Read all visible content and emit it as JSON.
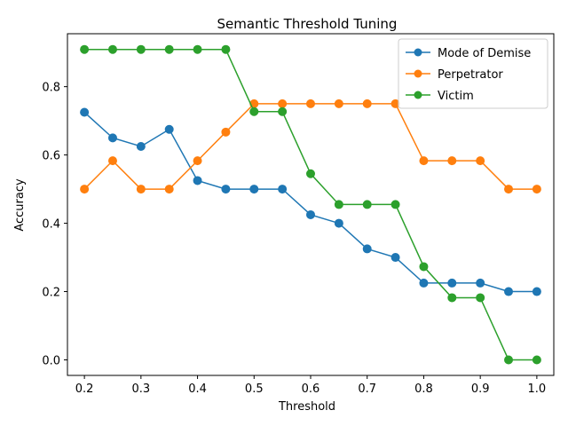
{
  "chart_data": {
    "type": "line",
    "title": "Semantic Threshold Tuning",
    "xlabel": "Threshold",
    "ylabel": "Accuracy",
    "x": [
      0.2,
      0.25,
      0.3,
      0.35,
      0.4,
      0.45,
      0.5,
      0.55,
      0.6,
      0.65,
      0.7,
      0.75,
      0.8,
      0.85,
      0.9,
      0.95,
      1.0
    ],
    "xlim": [
      0.17,
      1.03
    ],
    "ylim": [
      -0.0455,
      0.955
    ],
    "x_ticks": [
      0.2,
      0.3,
      0.4,
      0.5,
      0.6,
      0.7,
      0.8,
      0.9,
      1.0
    ],
    "x_tick_labels": [
      "0.2",
      "0.3",
      "0.4",
      "0.5",
      "0.6",
      "0.7",
      "0.8",
      "0.9",
      "1.0"
    ],
    "y_ticks": [
      0.0,
      0.2,
      0.4,
      0.6,
      0.8
    ],
    "y_tick_labels": [
      "0.0",
      "0.2",
      "0.4",
      "0.6",
      "0.8"
    ],
    "grid": false,
    "legend_position": "top-right",
    "series": [
      {
        "name": "Mode of Demise",
        "color": "#1f77b4",
        "values": [
          0.725,
          0.65,
          0.625,
          0.675,
          0.525,
          0.5,
          0.5,
          0.5,
          0.425,
          0.4,
          0.325,
          0.3,
          0.225,
          0.225,
          0.225,
          0.2,
          0.2
        ]
      },
      {
        "name": "Perpetrator",
        "color": "#ff7f0e",
        "values": [
          0.5,
          0.583,
          0.5,
          0.5,
          0.583,
          0.667,
          0.75,
          0.75,
          0.75,
          0.75,
          0.75,
          0.75,
          0.583,
          0.583,
          0.583,
          0.5,
          0.5
        ]
      },
      {
        "name": "Victim",
        "color": "#2ca02c",
        "values": [
          0.909,
          0.909,
          0.909,
          0.909,
          0.909,
          0.909,
          0.727,
          0.727,
          0.545,
          0.455,
          0.455,
          0.455,
          0.273,
          0.182,
          0.182,
          0.0,
          0.0
        ]
      }
    ]
  }
}
